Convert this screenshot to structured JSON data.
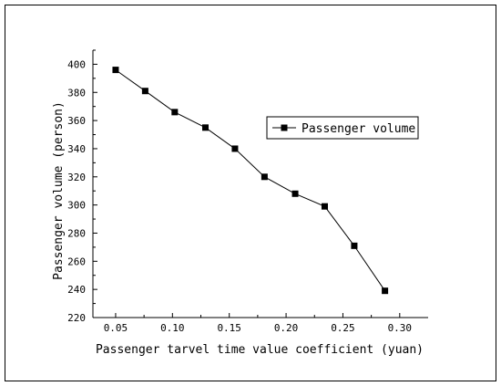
{
  "chart_data": {
    "type": "line",
    "xlabel": "Passenger tarvel time value coefficient (yuan)",
    "ylabel": "Passenger volume (person)",
    "xlim": [
      0.03,
      0.325
    ],
    "ylim": [
      220,
      410
    ],
    "x_ticks": [
      "0.05",
      "0.10",
      "0.15",
      "0.20",
      "0.25",
      "0.30"
    ],
    "x_tick_values": [
      0.05,
      0.1,
      0.15,
      0.2,
      0.25,
      0.3
    ],
    "y_ticks": [
      "220",
      "240",
      "260",
      "280",
      "300",
      "320",
      "340",
      "360",
      "380",
      "400"
    ],
    "y_tick_values": [
      220,
      240,
      260,
      280,
      300,
      320,
      340,
      360,
      380,
      400
    ],
    "legend_position": "upper-right",
    "grid": false,
    "series": [
      {
        "name": "Passenger volume",
        "color": "#000000",
        "marker": "square",
        "x": [
          0.05,
          0.076,
          0.102,
          0.129,
          0.155,
          0.181,
          0.208,
          0.234,
          0.26,
          0.287
        ],
        "y": [
          396,
          381,
          366,
          355,
          340,
          320,
          308,
          299,
          271,
          239
        ]
      }
    ]
  }
}
